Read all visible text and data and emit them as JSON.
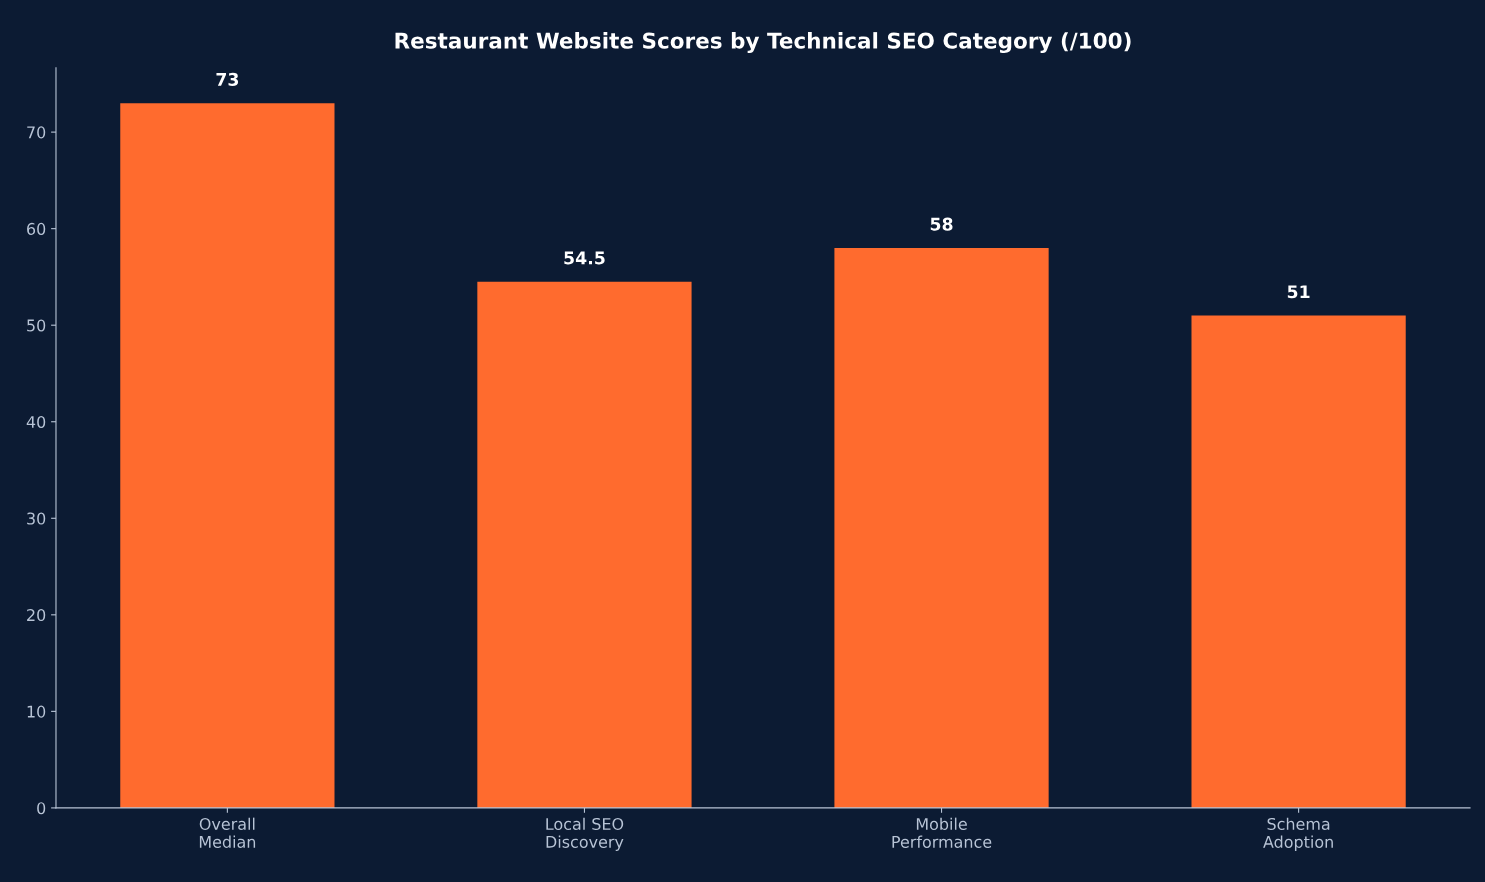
{
  "chart_data": {
    "type": "bar",
    "title": "Restaurant Website Scores by Technical SEO Category (/100)",
    "categories": [
      "Overall\nMedian",
      "Local SEO\nDiscovery",
      "Mobile\nPerformance",
      "Schema\nAdoption"
    ],
    "values": [
      73,
      54.5,
      58,
      51
    ],
    "color": "#ff6b2e",
    "ylim": [
      0,
      76.65
    ],
    "yticks": [
      0,
      10,
      20,
      30,
      40,
      50,
      60,
      70
    ],
    "grid": false,
    "data_labels": true
  }
}
